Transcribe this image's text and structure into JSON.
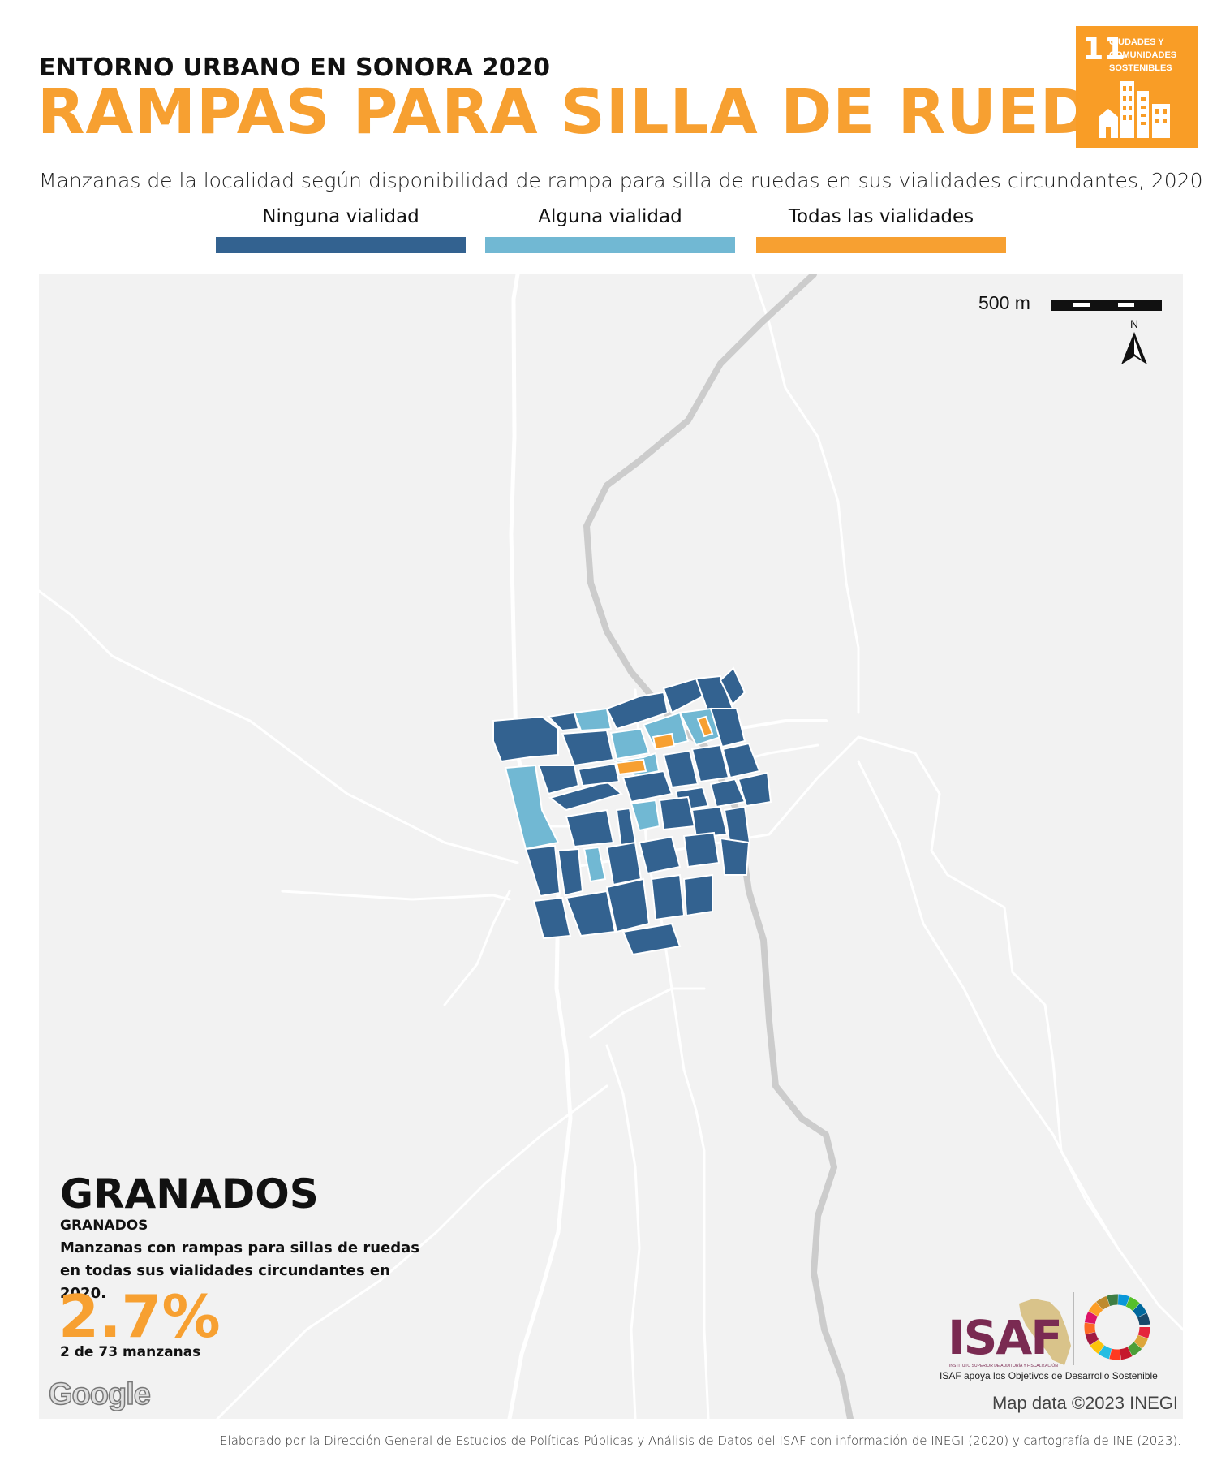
{
  "header": {
    "supertitle": "ENTORNO URBANO EN SONORA 2020",
    "title": "RAMPAS PARA SILLA DE RUEDAS",
    "subtitle": "Manzanas de la localidad según disponibilidad de rampa para silla de ruedas en sus vialidades circundantes, 2020"
  },
  "sdg_badge": {
    "number": "11",
    "text_lines": [
      "CIUDADES Y",
      "COMUNIDADES",
      "SOSTENIBLES"
    ],
    "color": "#f99d26"
  },
  "legend": [
    {
      "label": "Ninguna vialidad",
      "color": "#336290"
    },
    {
      "label": "Alguna vialidad",
      "color": "#71b8d3"
    },
    {
      "label": "Todas las vialidades",
      "color": "#f7a031"
    }
  ],
  "map": {
    "scale_label": "500 m",
    "north_label": "N",
    "attribution": "Map data ©2023 INEGI",
    "provider_logo": "Google"
  },
  "summary": {
    "locality_name": "GRANADOS",
    "municipality": "GRANADOS",
    "description": "Manzanas con rampas para sillas de ruedas en todas sus vialidades circundantes en 2020.",
    "percentage": "2.7%",
    "count_text": "2 de 73 manzanas"
  },
  "logos": {
    "isaf": "ISAF",
    "isaf_fullname": "INSTITUTO SUPERIOR DE AUDITORÍA Y FISCALIZACIÓN",
    "support_text": "ISAF apoya los Objetivos de Desarrollo Sostenible"
  },
  "footer": {
    "source": "Elaborado por la Dirección General de Estudios de Políticas Públicas y Análisis de Datos del ISAF con información de INEGI (2020) y cartografía de INE (2023)."
  }
}
